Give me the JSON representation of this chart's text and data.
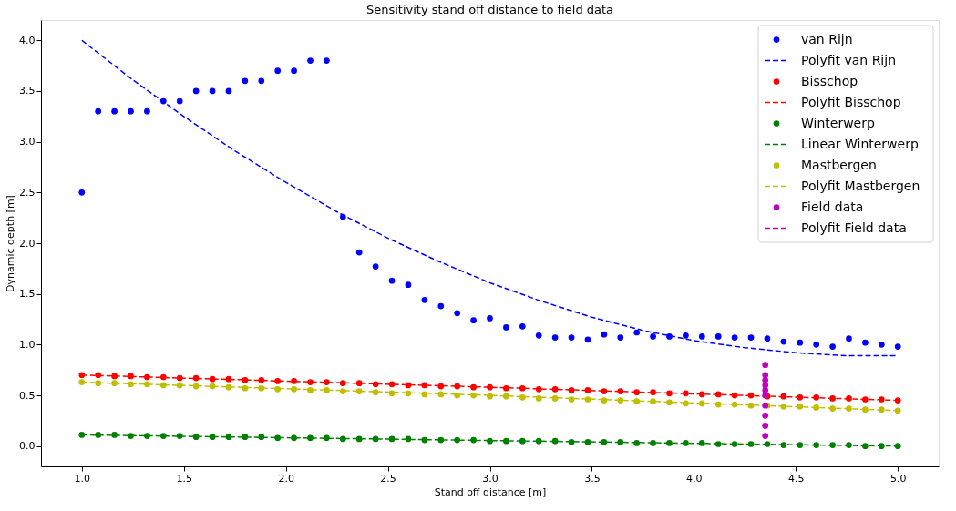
{
  "chart_data": {
    "type": "scatter",
    "title": "Sensitivity stand off distance to field data",
    "xlabel": "Stand off distance [m]",
    "ylabel": "Dynamic depth [m]",
    "x": [
      1.0,
      1.08,
      1.16,
      1.24,
      1.32,
      1.4,
      1.48,
      1.56,
      1.64,
      1.72,
      1.8,
      1.88,
      1.96,
      2.04,
      2.12,
      2.2,
      2.28,
      2.36,
      2.44,
      2.52,
      2.6,
      2.68,
      2.76,
      2.84,
      2.92,
      3.0,
      3.08,
      3.16,
      3.24,
      3.32,
      3.4,
      3.48,
      3.56,
      3.64,
      3.72,
      3.8,
      3.88,
      3.96,
      4.04,
      4.12,
      4.2,
      4.28,
      4.36,
      4.44,
      4.52,
      4.6,
      4.68,
      4.76,
      4.84,
      4.92,
      5.0
    ],
    "series": [
      {
        "name": "van Rijn",
        "color": "#0000ff",
        "values": [
          2.5,
          3.3,
          3.3,
          3.3,
          3.3,
          3.4,
          3.4,
          3.5,
          3.5,
          3.5,
          3.6,
          3.6,
          3.7,
          3.7,
          3.8,
          3.8,
          2.26,
          1.91,
          1.77,
          1.63,
          1.59,
          1.44,
          1.38,
          1.31,
          1.24,
          1.26,
          1.17,
          1.18,
          1.09,
          1.07,
          1.07,
          1.05,
          1.1,
          1.07,
          1.12,
          1.08,
          1.08,
          1.09,
          1.08,
          1.08,
          1.07,
          1.07,
          1.06,
          1.03,
          1.02,
          1.0,
          0.98,
          1.06,
          1.02,
          1.0,
          0.98
        ]
      },
      {
        "name": "Polyfit van Rijn",
        "type": "line",
        "line_style": "dashed",
        "marker": "none",
        "color": "#0000ff",
        "x": [
          1.0,
          1.25,
          1.5,
          1.75,
          2.0,
          2.25,
          2.5,
          2.75,
          3.0,
          3.25,
          3.5,
          3.75,
          4.0,
          4.25,
          4.5,
          4.75,
          5.0
        ],
        "values": [
          4.0,
          3.61,
          3.25,
          2.91,
          2.6,
          2.31,
          2.05,
          1.82,
          1.61,
          1.43,
          1.27,
          1.14,
          1.04,
          0.97,
          0.92,
          0.89,
          0.89
        ]
      },
      {
        "name": "Bisschop",
        "color": "#ff0000",
        "values": [
          0.7,
          0.7,
          0.69,
          0.69,
          0.68,
          0.68,
          0.67,
          0.67,
          0.66,
          0.66,
          0.65,
          0.65,
          0.64,
          0.64,
          0.63,
          0.63,
          0.62,
          0.62,
          0.61,
          0.61,
          0.6,
          0.6,
          0.59,
          0.59,
          0.58,
          0.58,
          0.57,
          0.57,
          0.56,
          0.56,
          0.55,
          0.55,
          0.54,
          0.54,
          0.53,
          0.53,
          0.52,
          0.52,
          0.51,
          0.51,
          0.5,
          0.5,
          0.49,
          0.49,
          0.48,
          0.48,
          0.47,
          0.47,
          0.46,
          0.46,
          0.45
        ]
      },
      {
        "name": "Polyfit Bisschop",
        "type": "line",
        "line_style": "dashed",
        "marker": "none",
        "color": "#ff0000",
        "x": [
          1.0,
          3.0,
          5.0
        ],
        "values": [
          0.7,
          0.58,
          0.45
        ]
      },
      {
        "name": "Winterwerp",
        "color": "#008000",
        "values": [
          0.11,
          0.11,
          0.11,
          0.1,
          0.1,
          0.1,
          0.1,
          0.09,
          0.09,
          0.09,
          0.09,
          0.09,
          0.08,
          0.08,
          0.08,
          0.08,
          0.07,
          0.07,
          0.07,
          0.07,
          0.07,
          0.06,
          0.06,
          0.06,
          0.06,
          0.05,
          0.05,
          0.05,
          0.05,
          0.05,
          0.04,
          0.04,
          0.04,
          0.04,
          0.03,
          0.03,
          0.03,
          0.03,
          0.03,
          0.02,
          0.02,
          0.02,
          0.02,
          0.01,
          0.01,
          0.01,
          0.01,
          0.01,
          0.0,
          0.0,
          0.0
        ]
      },
      {
        "name": "Linear Winterwerp",
        "type": "line",
        "line_style": "dashed",
        "marker": "none",
        "color": "#008000",
        "x": [
          1.0,
          5.0
        ],
        "values": [
          0.11,
          0.0
        ]
      },
      {
        "name": "Mastbergen",
        "color": "#bfbf00",
        "values": [
          0.63,
          0.62,
          0.62,
          0.61,
          0.61,
          0.6,
          0.6,
          0.59,
          0.59,
          0.58,
          0.57,
          0.57,
          0.56,
          0.56,
          0.55,
          0.55,
          0.54,
          0.54,
          0.53,
          0.52,
          0.52,
          0.51,
          0.51,
          0.5,
          0.5,
          0.49,
          0.49,
          0.48,
          0.47,
          0.47,
          0.46,
          0.46,
          0.45,
          0.45,
          0.44,
          0.44,
          0.43,
          0.42,
          0.42,
          0.41,
          0.41,
          0.4,
          0.4,
          0.39,
          0.39,
          0.38,
          0.37,
          0.37,
          0.36,
          0.36,
          0.35
        ]
      },
      {
        "name": "Polyfit Mastbergen",
        "type": "line",
        "line_style": "dashed",
        "marker": "none",
        "color": "#bfbf00",
        "x": [
          1.0,
          3.0,
          5.0
        ],
        "values": [
          0.63,
          0.5,
          0.35
        ]
      },
      {
        "name": "Field data",
        "color": "#bf00bf",
        "x": [
          4.35,
          4.35,
          4.35,
          4.35,
          4.35,
          4.35,
          4.35,
          4.35,
          4.35,
          4.35
        ],
        "values": [
          0.8,
          0.7,
          0.65,
          0.6,
          0.55,
          0.5,
          0.4,
          0.3,
          0.2,
          0.1
        ]
      },
      {
        "name": "Polyfit Field data",
        "type": "line",
        "line_style": "dashed",
        "marker": "none",
        "color": "#bf00bf",
        "values": [
          null,
          null,
          null,
          null,
          null,
          null,
          null,
          null,
          null,
          null,
          null,
          null,
          null,
          null,
          null,
          null,
          null,
          null,
          null,
          null,
          null,
          null,
          null,
          null,
          null,
          null,
          null,
          null,
          null,
          null,
          null,
          null,
          null,
          null,
          null,
          null,
          null,
          null,
          null,
          null,
          null,
          null,
          null,
          null,
          null,
          null,
          null,
          null,
          null,
          null,
          null
        ]
      }
    ],
    "xlim": [
      0.8,
      5.2
    ],
    "xticks": [
      {
        "value": 1,
        "label": "1.0"
      },
      {
        "value": 1.5,
        "label": "1.5"
      },
      {
        "value": 2,
        "label": "2.0"
      },
      {
        "value": 2.5,
        "label": "2.5"
      },
      {
        "value": 3,
        "label": "3.0"
      },
      {
        "value": 3.5,
        "label": "3.5"
      },
      {
        "value": 4,
        "label": "4.0"
      },
      {
        "value": 4.5,
        "label": "4.5"
      },
      {
        "value": 5,
        "label": "5.0"
      }
    ],
    "ylim": [
      -0.2,
      4.2
    ],
    "yticks": [
      {
        "value": 0,
        "label": "0.0"
      },
      {
        "value": 0.5,
        "label": "0.5"
      },
      {
        "value": 1,
        "label": "1.0"
      },
      {
        "value": 1.5,
        "label": "1.5"
      },
      {
        "value": 2,
        "label": "2.0"
      },
      {
        "value": 2.5,
        "label": "2.5"
      },
      {
        "value": 3,
        "label": "3.0"
      },
      {
        "value": 3.5,
        "label": "3.5"
      },
      {
        "value": 4,
        "label": "4.0"
      }
    ],
    "grid": false,
    "legend": "top right",
    "marker": "circle"
  }
}
